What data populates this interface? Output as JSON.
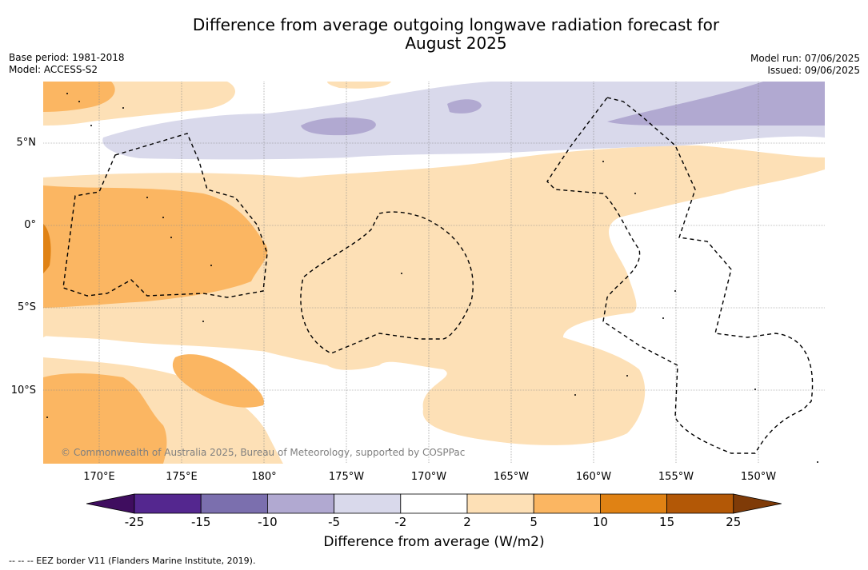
{
  "title_line1": "Difference from average outgoing longwave radiation forecast for",
  "title_line2": "August 2025",
  "base_period": "Base period: 1981-2018",
  "model": "Model: ACCESS-S2",
  "model_run": "Model run: 07/06/2025",
  "issued": "Issued: 09/06/2025",
  "lat_labels": [
    "5°N",
    "0°",
    "5°S",
    "10°S"
  ],
  "lon_labels": [
    "170°E",
    "175°E",
    "180°",
    "175°W",
    "170°W",
    "165°W",
    "160°W",
    "155°W",
    "150°W"
  ],
  "copyright": "© Commonwealth of Australia 2025, Bureau of Meteorology, supported by COSPPac",
  "colorbar": {
    "ticks": [
      "-25",
      "-15",
      "-10",
      "-5",
      "-2",
      "2",
      "5",
      "10",
      "15",
      "25"
    ],
    "colors": [
      "#3f0d5f",
      "#54278f",
      "#7b6fae",
      "#b1a9d1",
      "#d9d9eb",
      "#ffffff",
      "#fde0b6",
      "#fbb662",
      "#e08214",
      "#b35806",
      "#7f3b08"
    ],
    "label": "Difference from average (W/m2)"
  },
  "footnote": "--  --  -- EEZ border V11 (Flanders Marine Institute, 2019)."
}
